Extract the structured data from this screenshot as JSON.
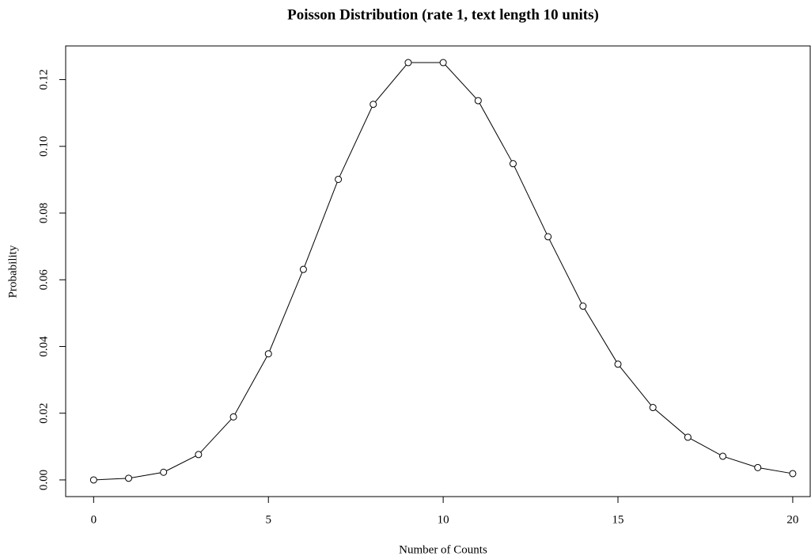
{
  "chart_data": {
    "type": "line",
    "title": "Poisson Distribution (rate 1, text length 10 units)",
    "x_label": "Number of Counts",
    "y_label": "Probability",
    "x": [
      0,
      1,
      2,
      3,
      4,
      5,
      6,
      7,
      8,
      9,
      10,
      11,
      12,
      13,
      14,
      15,
      16,
      17,
      18,
      19,
      20
    ],
    "series": [
      {
        "name": "Probability",
        "color": "#000000",
        "values": [
          0.0,
          0.0005,
          0.0023,
          0.0076,
          0.0189,
          0.0378,
          0.0631,
          0.0901,
          0.1126,
          0.1251,
          0.1251,
          0.1137,
          0.0948,
          0.0729,
          0.0521,
          0.0347,
          0.0217,
          0.0128,
          0.0071,
          0.0037,
          0.0019
        ]
      }
    ],
    "xlim": [
      -0.8,
      20.5
    ],
    "xticks": [
      0,
      5,
      10,
      15,
      20
    ],
    "ylim": [
      -0.005,
      0.1301
    ],
    "yticks": [
      {
        "value": 0,
        "label": "0.00"
      },
      {
        "value": 0.02,
        "label": "0.02"
      },
      {
        "value": 0.04,
        "label": "0.04"
      },
      {
        "value": 0.06,
        "label": "0.06"
      },
      {
        "value": 0.08,
        "label": "0.08"
      },
      {
        "value": 0.1,
        "label": "0.10"
      },
      {
        "value": 0.12,
        "label": "0.12"
      }
    ],
    "markers": "open-circle"
  }
}
